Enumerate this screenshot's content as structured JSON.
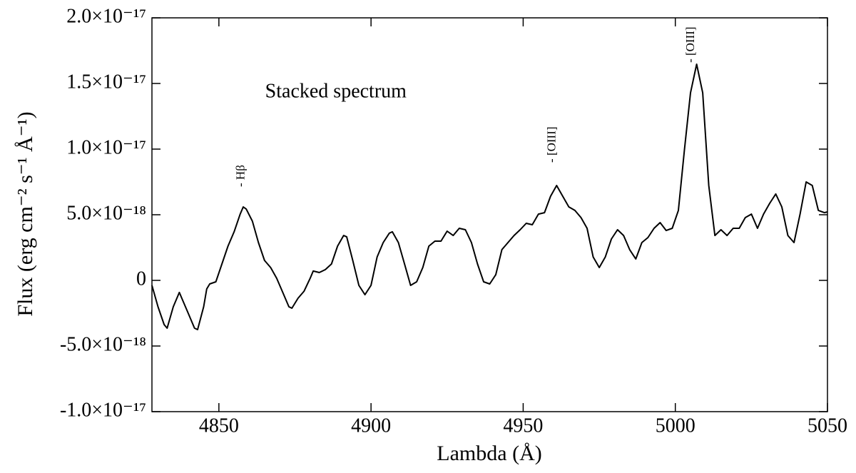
{
  "chart_data": {
    "type": "line",
    "xlabel": "Lambda (Å)",
    "ylabel": "Flux (erg cm⁻² s⁻¹ Å⁻¹)",
    "x": [
      4828,
      4830,
      4832,
      4833,
      4835,
      4837,
      4838,
      4840,
      4842,
      4843,
      4845,
      4846,
      4847,
      4849,
      4851,
      4853,
      4855,
      4857,
      4858,
      4859,
      4861,
      4863,
      4865,
      4867,
      4869,
      4871,
      4873,
      4874,
      4876,
      4878,
      4880,
      4881,
      4883,
      4885,
      4887,
      4889,
      4891,
      4892,
      4894,
      4896,
      4898,
      4900,
      4902,
      4904,
      4906,
      4907,
      4909,
      4911,
      4913,
      4915,
      4917,
      4919,
      4921,
      4923,
      4925,
      4927,
      4929,
      4931,
      4933,
      4935,
      4937,
      4939,
      4941,
      4943,
      4945,
      4947,
      4949,
      4951,
      4953,
      4955,
      4957,
      4959,
      4961,
      4963,
      4965,
      4967,
      4969,
      4971,
      4973,
      4975,
      4977,
      4979,
      4981,
      4983,
      4985,
      4987,
      4989,
      4991,
      4993,
      4995,
      4997,
      4999,
      5001,
      5003,
      5005,
      5007,
      5009,
      5011,
      5013,
      5015,
      5017,
      5019,
      5021,
      5023,
      5025,
      5027,
      5029,
      5031,
      5033,
      5035,
      5037,
      5039,
      5041,
      5043,
      5045,
      5047,
      5049,
      5050
    ],
    "series": [
      {
        "name": "Stacked spectrum",
        "color": "#000000",
        "values": [
          -3.8e-19,
          -2.01e-18,
          -3.37e-18,
          -3.64e-18,
          -2.01e-18,
          -9.2e-19,
          -1.47e-18,
          -2.55e-18,
          -3.64e-18,
          -3.75e-18,
          -2.01e-18,
          -6.5e-19,
          -2.7e-19,
          -1.1e-19,
          1.25e-18,
          2.61e-18,
          3.7e-18,
          5.05e-18,
          5.6e-18,
          5.43e-18,
          4.51e-18,
          2.88e-18,
          1.52e-18,
          9.8e-19,
          1.6e-19,
          -9.2e-19,
          -2.01e-18,
          -2.12e-18,
          -1.36e-18,
          -8.2e-19,
          1.6e-19,
          7.1e-19,
          6e-19,
          8.2e-19,
          1.25e-18,
          2.61e-18,
          3.42e-18,
          3.32e-18,
          1.52e-18,
          -3.8e-19,
          -1.09e-18,
          -3.8e-19,
          1.79e-18,
          2.88e-18,
          3.59e-18,
          3.7e-18,
          2.88e-18,
          1.25e-18,
          -3.8e-19,
          -1.1e-19,
          9.8e-19,
          2.61e-18,
          2.99e-18,
          2.99e-18,
          3.75e-18,
          3.42e-18,
          3.97e-18,
          3.86e-18,
          2.88e-18,
          1.25e-18,
          -1.1e-19,
          -2.7e-19,
          4.3e-19,
          2.34e-18,
          2.88e-18,
          3.42e-18,
          3.86e-18,
          4.35e-18,
          4.24e-18,
          5.05e-18,
          5.16e-18,
          6.41e-18,
          7.23e-18,
          6.41e-18,
          5.6e-18,
          5.33e-18,
          4.78e-18,
          3.97e-18,
          1.79e-18,
          9.8e-19,
          1.79e-18,
          3.15e-18,
          3.86e-18,
          3.42e-18,
          2.34e-18,
          1.63e-18,
          2.88e-18,
          3.26e-18,
          3.97e-18,
          4.4e-18,
          3.8e-18,
          3.97e-18,
          5.33e-18,
          9.95e-18,
          1.429e-17,
          1.647e-17,
          1.429e-17,
          7.23e-18,
          3.42e-18,
          3.86e-18,
          3.42e-18,
          3.97e-18,
          3.97e-18,
          4.78e-18,
          5.05e-18,
          3.97e-18,
          5.05e-18,
          5.87e-18,
          6.58e-18,
          5.6e-18,
          3.42e-18,
          2.88e-18,
          5.05e-18,
          7.5e-18,
          7.23e-18,
          5.33e-18,
          5.16e-18,
          5.22e-18
        ]
      }
    ],
    "xlim": [
      4828,
      5050
    ],
    "xticks": [
      4850,
      4900,
      4950,
      5000,
      5050
    ],
    "ylim": [
      -1e-17,
      2e-17
    ],
    "yticks": [
      {
        "value": -1e-17,
        "label": "-1.0×10⁻¹⁷"
      },
      {
        "value": -5e-18,
        "label": "-5.0×10⁻¹⁸"
      },
      0,
      {
        "value": 5e-18,
        "label": "5.0×10⁻¹⁸"
      },
      {
        "value": 1e-17,
        "label": "1.0×10⁻¹⁷"
      },
      {
        "value": 1.5e-17,
        "label": "1.5×10⁻¹⁷"
      },
      {
        "value": 2e-17,
        "label": "2.0×10⁻¹⁷"
      }
    ],
    "annotations": [
      {
        "text": "Stacked spectrum",
        "x": 4865.2,
        "y": 1.429e-17,
        "color": "#e00000"
      },
      {
        "text": "- Hβ",
        "x": 4857.5,
        "y": 7.12e-18,
        "rotate": true
      },
      {
        "text": "- [OIII]",
        "x": 4959.6,
        "y": 8.97e-18,
        "rotate": true
      },
      {
        "text": "- [OIII]",
        "x": 5005.3,
        "y": 1.658e-17,
        "rotate": true
      }
    ]
  }
}
